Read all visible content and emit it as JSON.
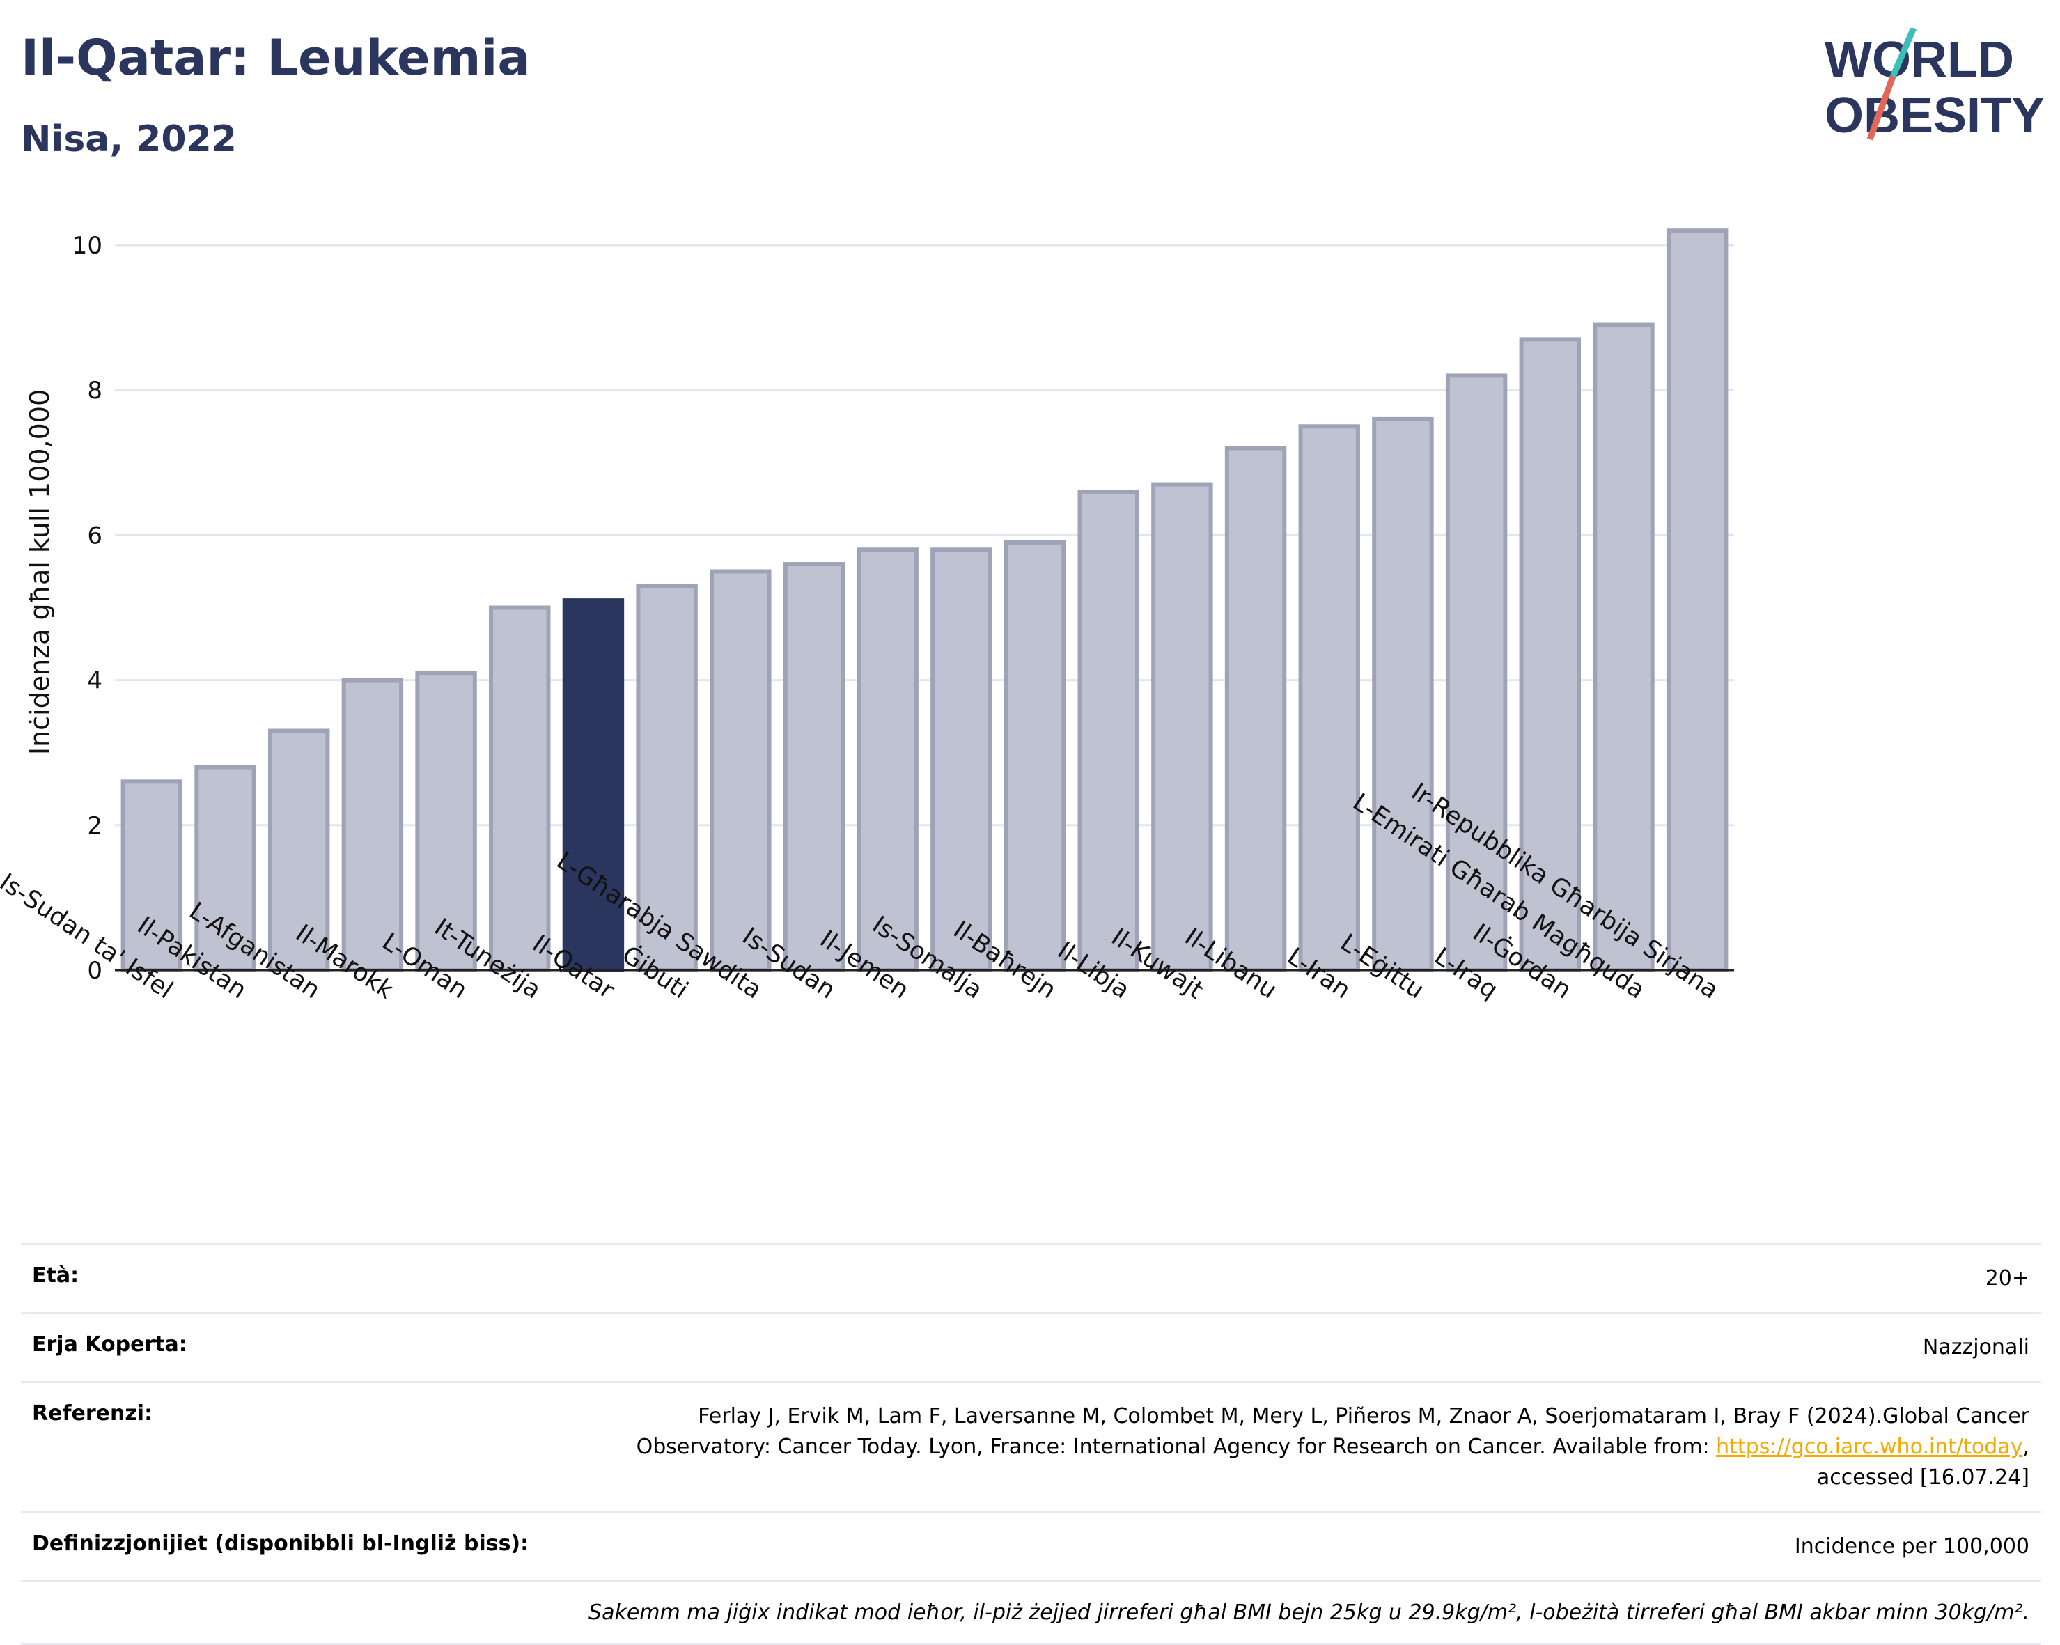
{
  "header": {
    "title": "Il-Qatar: Leukemia",
    "subtitle": "Nisa, 2022",
    "logo_line1": "WORLD",
    "logo_line2": "OBESITY"
  },
  "colors": {
    "highlight": "#2b365f",
    "bar": "#bfc3d1",
    "bar_border": "#9ea3b8",
    "logo_slash_top": "#3bbfb8",
    "logo_slash_bottom": "#e3685a",
    "link": "#f2a900"
  },
  "chart_data": {
    "type": "bar",
    "title": "Il-Qatar: Leukemia",
    "subtitle": "Nisa, 2022",
    "xlabel": "",
    "ylabel": "Inċidenza għal kull 100,000",
    "ylim": [
      0,
      10.5
    ],
    "yticks": [
      0,
      2,
      4,
      6,
      8,
      10
    ],
    "grid": true,
    "highlight_category": "Il-Qatar",
    "categories": [
      "Is-Sudan ta' Isfel",
      "Il-Pakistan",
      "L-Afganistan",
      "Il-Marokk",
      "L-Oman",
      "It-Tuneżija",
      "Il-Qatar",
      "Ġibuti",
      "L-Għarabja Sawdita",
      "Is-Sudan",
      "Il-Jemen",
      "Is-Somalja",
      "Il-Baħrejn",
      "Il-Libja",
      "Il-Kuwajt",
      "Il-Libanu",
      "L-Iran",
      "L-Eġittu",
      "L-Iraq",
      "Il-Ġordan",
      "L-Emirati Għarab Magħquda",
      "Ir-Repubblika Għarbija Sirjana"
    ],
    "values": [
      2.6,
      2.8,
      3.3,
      4.0,
      4.1,
      5.0,
      5.1,
      5.3,
      5.5,
      5.6,
      5.8,
      5.8,
      5.9,
      6.6,
      6.7,
      7.2,
      7.5,
      7.6,
      8.2,
      8.7,
      8.9,
      10.2
    ]
  },
  "meta": {
    "age_label": "Età:",
    "age_value": "20+",
    "coverage_label": "Erja Koperta:",
    "coverage_value": "Nazzjonali",
    "refs_label": "Referenzi:",
    "refs_line1": "Ferlay J, Ervik M, Lam F, Laversanne M, Colombet M, Mery L, Piñeros M, Znaor A, Soerjomataram I, Bray F (2024).Global Cancer",
    "refs_line2a": "Observatory: Cancer Today. Lyon, France: International Agency for Research on Cancer. Available from: ",
    "refs_link": "https://gco.iarc.who.int/today",
    "refs_line2b": ",",
    "refs_line3": "accessed [16.07.24]",
    "defs_label": "Definizzjonijiet (disponibbli bl-Ingliż biss):",
    "defs_value": "Incidence per 100,000",
    "note": "Sakemm ma jiġix indikat mod ieħor, il-piż żejjed jirreferi għal BMI bejn 25kg u 29.9kg/m², l-obeżità tirreferi għal BMI akbar minn 30kg/m²."
  }
}
